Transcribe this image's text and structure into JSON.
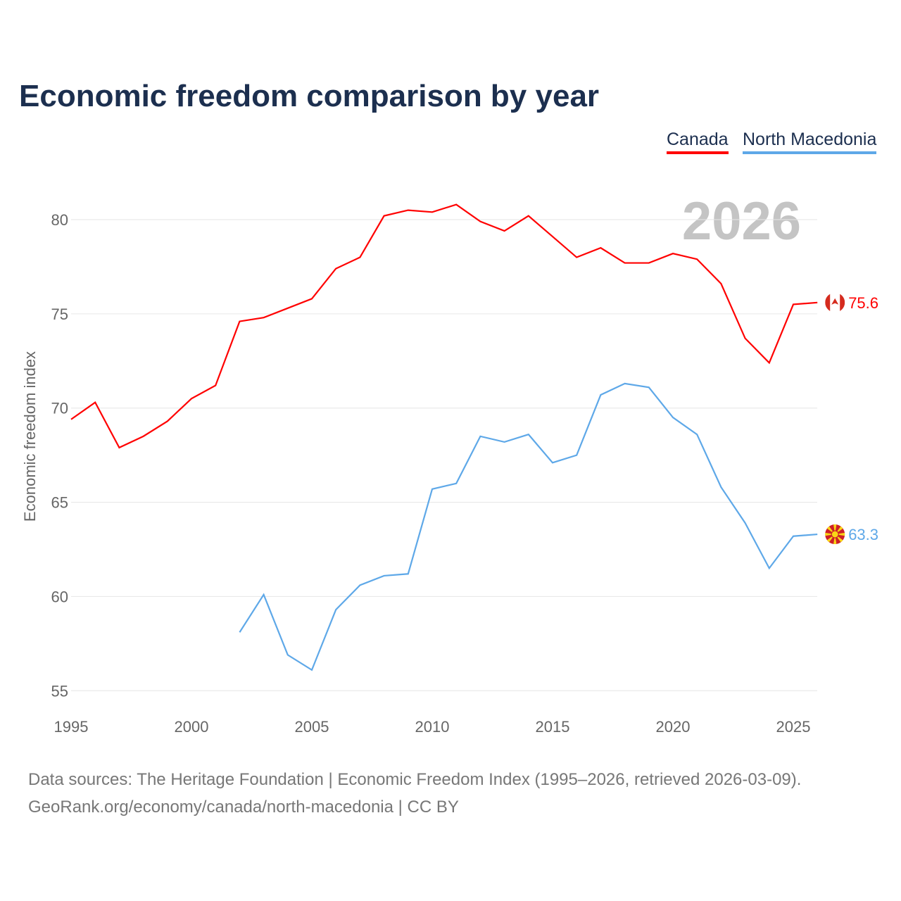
{
  "chart_data": {
    "type": "line",
    "title": "Economic freedom comparison by year",
    "ylabel": "Economic freedom index",
    "xlabel": "",
    "xlim": [
      1995,
      2026
    ],
    "ylim": [
      55,
      82
    ],
    "x_ticks": [
      "1995",
      "2000",
      "2005",
      "2010",
      "2015",
      "2020",
      "2025"
    ],
    "y_ticks": [
      "55",
      "60",
      "65",
      "70",
      "75",
      "80"
    ],
    "grid": true,
    "legend": "top-right",
    "watermark_year": "2026",
    "series": [
      {
        "name": "Canada",
        "color": "#ff0000",
        "end_label": "75.6",
        "start_year": 1995,
        "values": [
          69.4,
          70.3,
          67.9,
          68.5,
          69.3,
          70.5,
          71.2,
          74.6,
          74.8,
          75.3,
          75.8,
          77.4,
          78.0,
          80.2,
          80.5,
          80.4,
          80.8,
          79.9,
          79.4,
          80.2,
          79.1,
          78.0,
          78.5,
          77.7,
          77.7,
          78.2,
          77.9,
          76.6,
          73.7,
          72.4,
          75.5,
          75.6
        ]
      },
      {
        "name": "North Macedonia",
        "color": "#5ea8e8",
        "end_label": "63.3",
        "start_year": 2002,
        "values": [
          58.1,
          60.1,
          56.9,
          56.1,
          59.3,
          60.6,
          61.1,
          61.2,
          65.7,
          66.0,
          68.5,
          68.2,
          68.6,
          67.1,
          67.5,
          70.7,
          71.3,
          71.1,
          69.5,
          68.6,
          65.8,
          63.9,
          61.5,
          63.2,
          63.3
        ]
      }
    ]
  },
  "footer": {
    "line1": "Data sources: The Heritage Foundation | Economic Freedom Index (1995–2026, retrieved 2026-03-09).",
    "line2": "GeoRank.org/economy/canada/north-macedonia | CC BY"
  }
}
